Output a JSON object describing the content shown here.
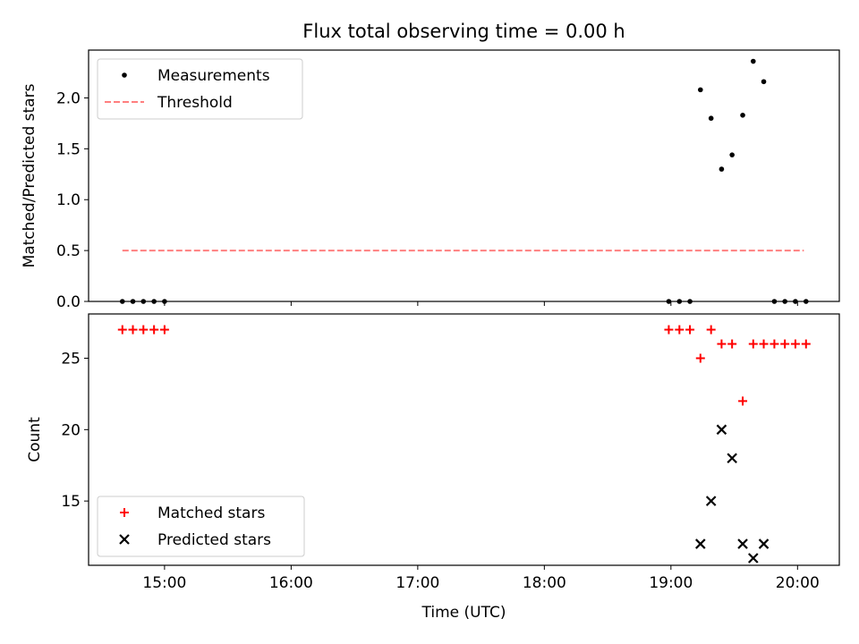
{
  "chart_data": [
    {
      "type": "scatter",
      "title": "Flux total observing time = 0.00 h",
      "xlabel": "",
      "ylabel": "Matched/Predicted stars",
      "xlim": [
        14.4,
        20.33
      ],
      "ylim": [
        0.0,
        2.47
      ],
      "xticks": [
        15,
        16,
        17,
        18,
        19,
        20
      ],
      "yticks": [
        0.0,
        0.5,
        1.0,
        1.5,
        2.0
      ],
      "ytick_labels": [
        "0.0",
        "0.5",
        "1.0",
        "1.5",
        "2.0"
      ],
      "legend_position": "upper-left",
      "series": [
        {
          "name": "Measurements",
          "marker": "dot",
          "color": "#000000",
          "x": [
            14.667,
            14.75,
            14.833,
            14.917,
            15.0,
            18.983,
            19.067,
            19.15,
            19.233,
            19.317,
            19.4,
            19.483,
            19.567,
            19.65,
            19.733,
            19.817,
            19.9,
            19.983,
            20.067
          ],
          "y": [
            0,
            0,
            0,
            0,
            0,
            0,
            0,
            0,
            2.08,
            1.8,
            1.3,
            1.44,
            1.83,
            2.36,
            2.16,
            0,
            0,
            0,
            0
          ]
        },
        {
          "name": "Threshold",
          "style": "dashed-line",
          "color": "#ff7f7f",
          "x": [
            14.667,
            20.05
          ],
          "y": [
            0.5,
            0.5
          ]
        }
      ]
    },
    {
      "type": "scatter",
      "title": "",
      "xlabel": "Time (UTC)",
      "ylabel": "Count",
      "xlim": [
        14.4,
        20.33
      ],
      "ylim": [
        10.5,
        28.1
      ],
      "xticks": [
        15,
        16,
        17,
        18,
        19,
        20
      ],
      "xtick_labels": [
        "15:00",
        "16:00",
        "17:00",
        "18:00",
        "19:00",
        "20:00"
      ],
      "yticks": [
        15,
        20,
        25
      ],
      "ytick_labels": [
        "15",
        "20",
        "25"
      ],
      "legend_position": "lower-left",
      "series": [
        {
          "name": "Matched stars",
          "marker": "plus",
          "color": "#ff0000",
          "x": [
            14.667,
            14.75,
            14.833,
            14.917,
            15.0,
            18.983,
            19.067,
            19.15,
            19.233,
            19.317,
            19.4,
            19.483,
            19.567,
            19.65,
            19.733,
            19.817,
            19.9,
            19.983,
            20.067
          ],
          "y": [
            27,
            27,
            27,
            27,
            27,
            27,
            27,
            27,
            25,
            27,
            26,
            26,
            22,
            26,
            26,
            26,
            26,
            26,
            26
          ]
        },
        {
          "name": "Predicted stars",
          "marker": "x",
          "color": "#000000",
          "x": [
            19.233,
            19.317,
            19.4,
            19.483,
            19.567,
            19.65,
            19.733
          ],
          "y": [
            12,
            15,
            20,
            18,
            12,
            11,
            12
          ]
        }
      ]
    }
  ]
}
